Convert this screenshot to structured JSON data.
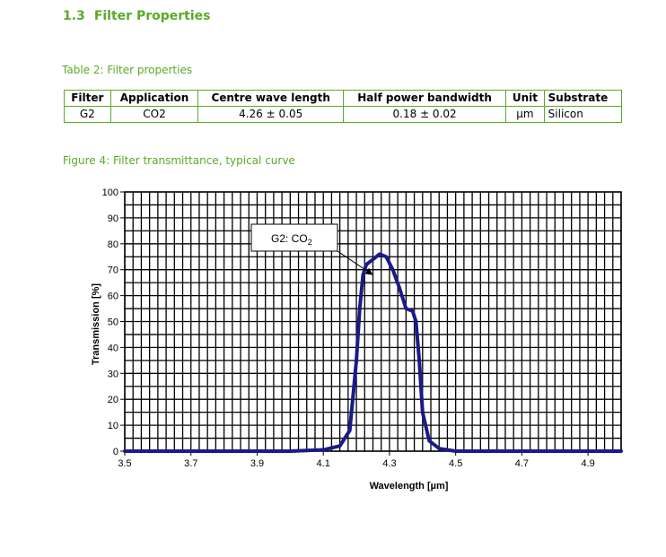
{
  "section": {
    "number": "1.3",
    "title": "Filter Properties"
  },
  "table": {
    "caption": "Table 2: Filter properties",
    "headers": [
      "Filter",
      "Application",
      "Centre wave length",
      "Half power bandwidth",
      "Unit",
      "Substrate"
    ],
    "rows": [
      [
        "G2",
        "CO2",
        "4.26 ± 0.05",
        "0.18 ± 0.02",
        "µm",
        "Silicon"
      ]
    ]
  },
  "figure": {
    "caption": "Figure 4: Filter transmittance, typical curve"
  },
  "chart_data": {
    "type": "line",
    "xlabel": "Wavelength [µm]",
    "ylabel": "Transmission [%]",
    "xlim": [
      3.5,
      5.0
    ],
    "ylim": [
      0,
      100
    ],
    "x_ticks": [
      "3.5",
      "3.7",
      "3.9",
      "4.1",
      "4.3",
      "4.5",
      "4.7",
      "4.9"
    ],
    "y_ticks": [
      "0",
      "10",
      "20",
      "30",
      "40",
      "50",
      "60",
      "70",
      "80",
      "90",
      "100"
    ],
    "grid": true,
    "annotation": {
      "text": "G2: CO",
      "subscript": "2",
      "x": 4.25,
      "y": 68
    },
    "series": [
      {
        "color": "#1a1a8a",
        "x": [
          3.5,
          4.0,
          4.1,
          4.15,
          4.18,
          4.2,
          4.21,
          4.22,
          4.23,
          4.25,
          4.27,
          4.29,
          4.31,
          4.33,
          4.35,
          4.37,
          4.38,
          4.39,
          4.4,
          4.42,
          4.45,
          4.5,
          5.0
        ],
        "y": [
          0,
          0,
          0.5,
          2,
          8,
          35,
          55,
          68,
          72,
          74,
          76,
          75,
          70,
          63,
          55,
          54,
          50,
          35,
          15,
          4,
          1,
          0,
          0
        ]
      }
    ]
  }
}
